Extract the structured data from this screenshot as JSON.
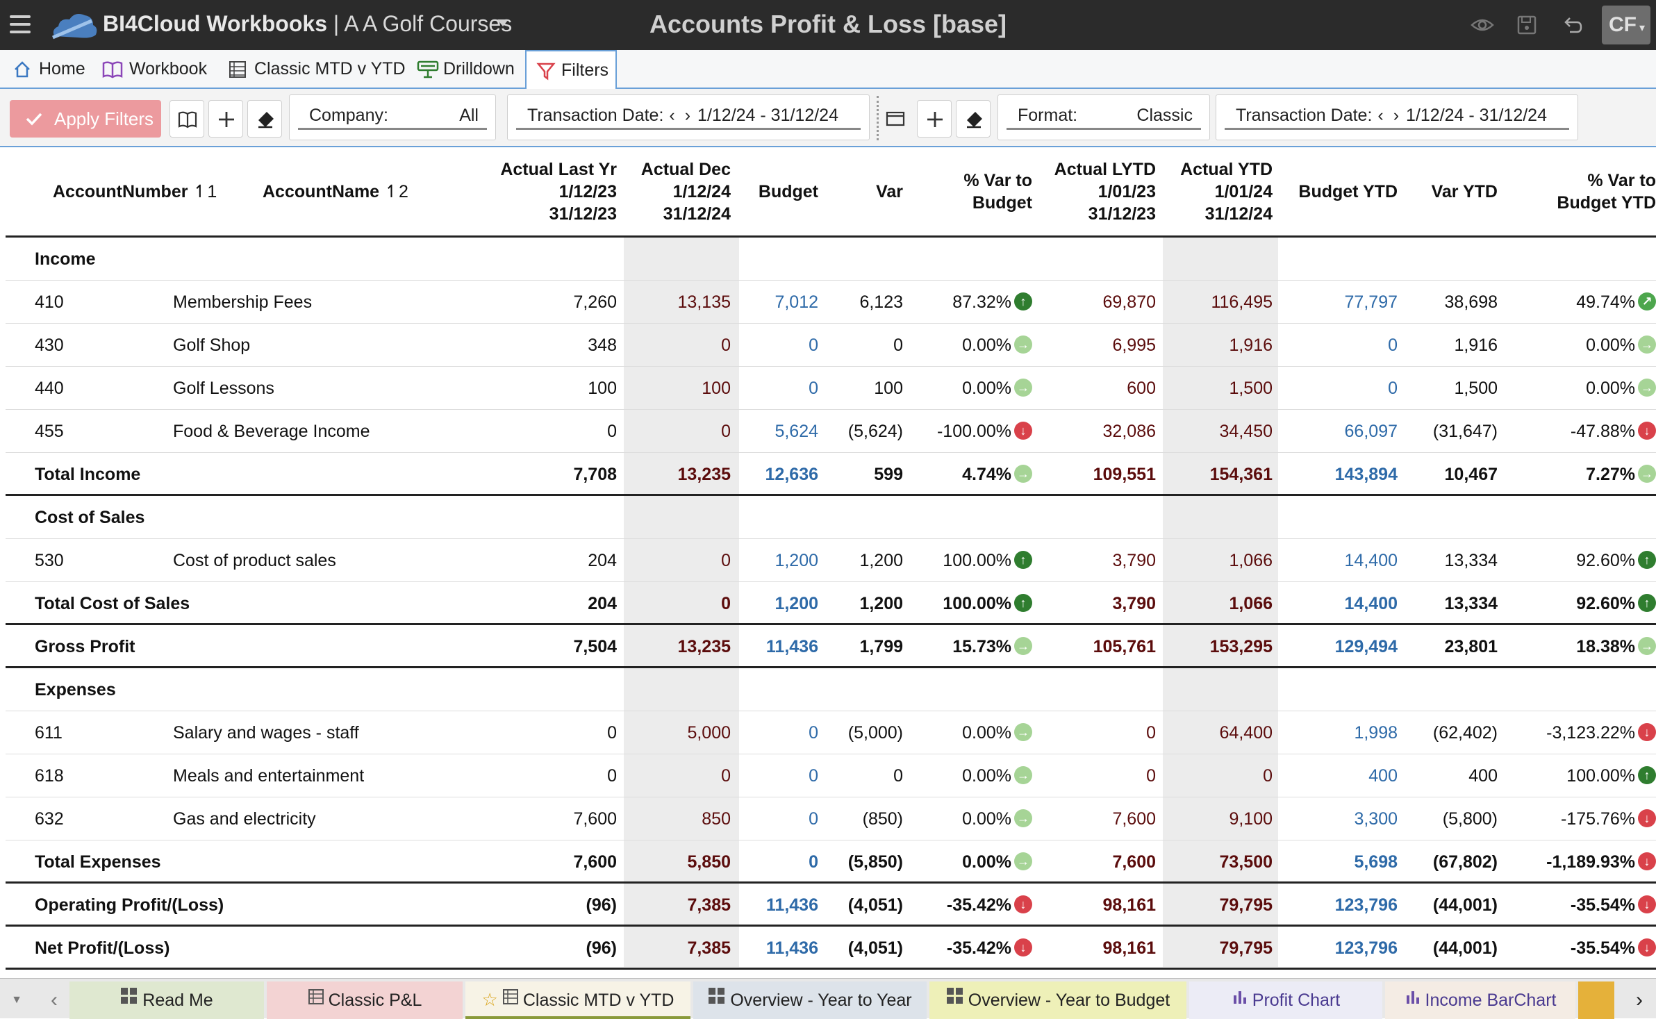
{
  "app": {
    "brand": "BI4Cloud Workbooks",
    "separator": " | ",
    "workbook_name": "A A Golf Courses",
    "title": "Accounts Profit & Loss [base]",
    "user_initials": "CF"
  },
  "nav_tabs": [
    {
      "label": "Home"
    },
    {
      "label": "Workbook"
    },
    {
      "label": "Classic MTD v YTD"
    },
    {
      "label": "Drilldown"
    },
    {
      "label": "Filters"
    }
  ],
  "filters": {
    "apply_label": "Apply Filters",
    "company_label": "Company:",
    "company_value": "All",
    "txn_label_1": "Transaction Date:",
    "txn_value_1": "1/12/24 - 31/12/24",
    "format_label": "Format:",
    "format_value": "Classic",
    "txn_label_2": "Transaction Date:",
    "txn_value_2": "1/12/24 - 31/12/24"
  },
  "columns": {
    "account_number": "AccountNumber",
    "account_number_sort": "1",
    "account_name": "AccountName",
    "account_name_sort": "2",
    "actual_last_yr": [
      "Actual Last Yr",
      "1/12/23",
      "31/12/23"
    ],
    "actual_dec": [
      "Actual Dec",
      "1/12/24",
      "31/12/24"
    ],
    "budget": "Budget",
    "var": "Var",
    "pct_var": [
      "% Var to",
      "Budget"
    ],
    "actual_lytd": [
      "Actual LYTD",
      "1/01/23",
      "31/12/23"
    ],
    "actual_ytd": [
      "Actual YTD",
      "1/01/24",
      "31/12/24"
    ],
    "budget_ytd": "Budget YTD",
    "var_ytd": "Var YTD",
    "pct_var_ytd": [
      "% Var to",
      "Budget YTD"
    ]
  },
  "rows": [
    {
      "kind": "group",
      "num": "Income",
      "name": ""
    },
    {
      "kind": "line",
      "num": "410",
      "name": "Membership Fees",
      "v": [
        "7,260",
        "13,135",
        "7,012",
        "6,123",
        "87.32%",
        "69,870",
        "116,495",
        "77,797",
        "38,698",
        "49.74%"
      ],
      "a1": "up",
      "a2": "ne"
    },
    {
      "kind": "line",
      "num": "430",
      "name": "Golf Shop",
      "v": [
        "348",
        "0",
        "0",
        "0",
        "0.00%",
        "6,995",
        "1,916",
        "0",
        "1,916",
        "0.00%"
      ],
      "a1": "flat",
      "a2": "flat"
    },
    {
      "kind": "line",
      "num": "440",
      "name": "Golf Lessons",
      "v": [
        "100",
        "100",
        "0",
        "100",
        "0.00%",
        "600",
        "1,500",
        "0",
        "1,500",
        "0.00%"
      ],
      "a1": "flat",
      "a2": "flat"
    },
    {
      "kind": "line",
      "num": "455",
      "name": "Food & Beverage Income",
      "v": [
        "0",
        "0",
        "5,624",
        "(5,624)",
        "-100.00%",
        "32,086",
        "34,450",
        "66,097",
        "(31,647)",
        "-47.88%"
      ],
      "a1": "down",
      "a2": "down"
    },
    {
      "kind": "total",
      "num": "Total Income",
      "name": "",
      "v": [
        "7,708",
        "13,235",
        "12,636",
        "599",
        "4.74%",
        "109,551",
        "154,361",
        "143,894",
        "10,467",
        "7.27%"
      ],
      "a1": "flat",
      "a2": "flat"
    },
    {
      "kind": "group",
      "num": "Cost of Sales",
      "name": ""
    },
    {
      "kind": "line",
      "num": "530",
      "name": "Cost of product sales",
      "v": [
        "204",
        "0",
        "1,200",
        "1,200",
        "100.00%",
        "3,790",
        "1,066",
        "14,400",
        "13,334",
        "92.60%"
      ],
      "a1": "up",
      "a2": "up"
    },
    {
      "kind": "total",
      "num": "Total Cost of Sales",
      "name": "",
      "v": [
        "204",
        "0",
        "1,200",
        "1,200",
        "100.00%",
        "3,790",
        "1,066",
        "14,400",
        "13,334",
        "92.60%"
      ],
      "a1": "up",
      "a2": "up"
    },
    {
      "kind": "total",
      "num": "Gross Profit",
      "name": "",
      "v": [
        "7,504",
        "13,235",
        "11,436",
        "1,799",
        "15.73%",
        "105,761",
        "153,295",
        "129,494",
        "23,801",
        "18.38%"
      ],
      "a1": "flat",
      "a2": "flat"
    },
    {
      "kind": "group",
      "num": "Expenses",
      "name": ""
    },
    {
      "kind": "line",
      "num": "611",
      "name": "Salary and wages - staff",
      "v": [
        "0",
        "5,000",
        "0",
        "(5,000)",
        "0.00%",
        "0",
        "64,400",
        "1,998",
        "(62,402)",
        "-3,123.22%"
      ],
      "a1": "flat",
      "a2": "down"
    },
    {
      "kind": "line",
      "num": "618",
      "name": "Meals and entertainment",
      "v": [
        "0",
        "0",
        "0",
        "0",
        "0.00%",
        "0",
        "0",
        "400",
        "400",
        "100.00%"
      ],
      "a1": "flat",
      "a2": "up"
    },
    {
      "kind": "line",
      "num": "632",
      "name": "Gas and electricity",
      "v": [
        "7,600",
        "850",
        "0",
        "(850)",
        "0.00%",
        "7,600",
        "9,100",
        "3,300",
        "(5,800)",
        "-175.76%"
      ],
      "a1": "flat",
      "a2": "down"
    },
    {
      "kind": "total",
      "num": "Total Expenses",
      "name": "",
      "v": [
        "7,600",
        "5,850",
        "0",
        "(5,850)",
        "0.00%",
        "7,600",
        "73,500",
        "5,698",
        "(67,802)",
        "-1,189.93%"
      ],
      "a1": "flat",
      "a2": "down"
    },
    {
      "kind": "total",
      "num": "Operating Profit/(Loss)",
      "name": "",
      "v": [
        "(96)",
        "7,385",
        "11,436",
        "(4,051)",
        "-35.42%",
        "98,161",
        "79,795",
        "123,796",
        "(44,001)",
        "-35.54%"
      ],
      "a1": "down",
      "a2": "down"
    },
    {
      "kind": "total",
      "num": "Net Profit/(Loss)",
      "name": "",
      "v": [
        "(96)",
        "7,385",
        "11,436",
        "(4,051)",
        "-35.42%",
        "98,161",
        "79,795",
        "123,796",
        "(44,001)",
        "-35.54%"
      ],
      "a1": "down",
      "a2": "down"
    }
  ],
  "sheet_tabs": [
    {
      "label": "Read Me",
      "bg": "#dfe8d0",
      "icon": "grid-icon"
    },
    {
      "label": "Classic P&L",
      "bg": "#f3d3d3",
      "icon": "table-icon"
    },
    {
      "label": "Classic MTD v YTD",
      "bg": "#f7f3e6",
      "icon": "table-icon"
    },
    {
      "label": "Overview - Year to Year",
      "bg": "#dde3ea",
      "icon": "grid-icon"
    },
    {
      "label": "Overview - Year to Budget",
      "bg": "#eef0b8",
      "icon": "grid-icon"
    },
    {
      "label": "Profit Chart",
      "bg": "#ececf6",
      "icon": "bar-chart-icon"
    },
    {
      "label": "Income BarChart",
      "bg": "#f4ece4",
      "icon": "bar-chart-icon"
    }
  ],
  "colors": {
    "accent_blue": "#2e6aa8",
    "up_green": "#2f7d2f",
    "down_red": "#d9414a",
    "flat_green": "#a6d496",
    "apply_button": "#ec9a9e"
  }
}
